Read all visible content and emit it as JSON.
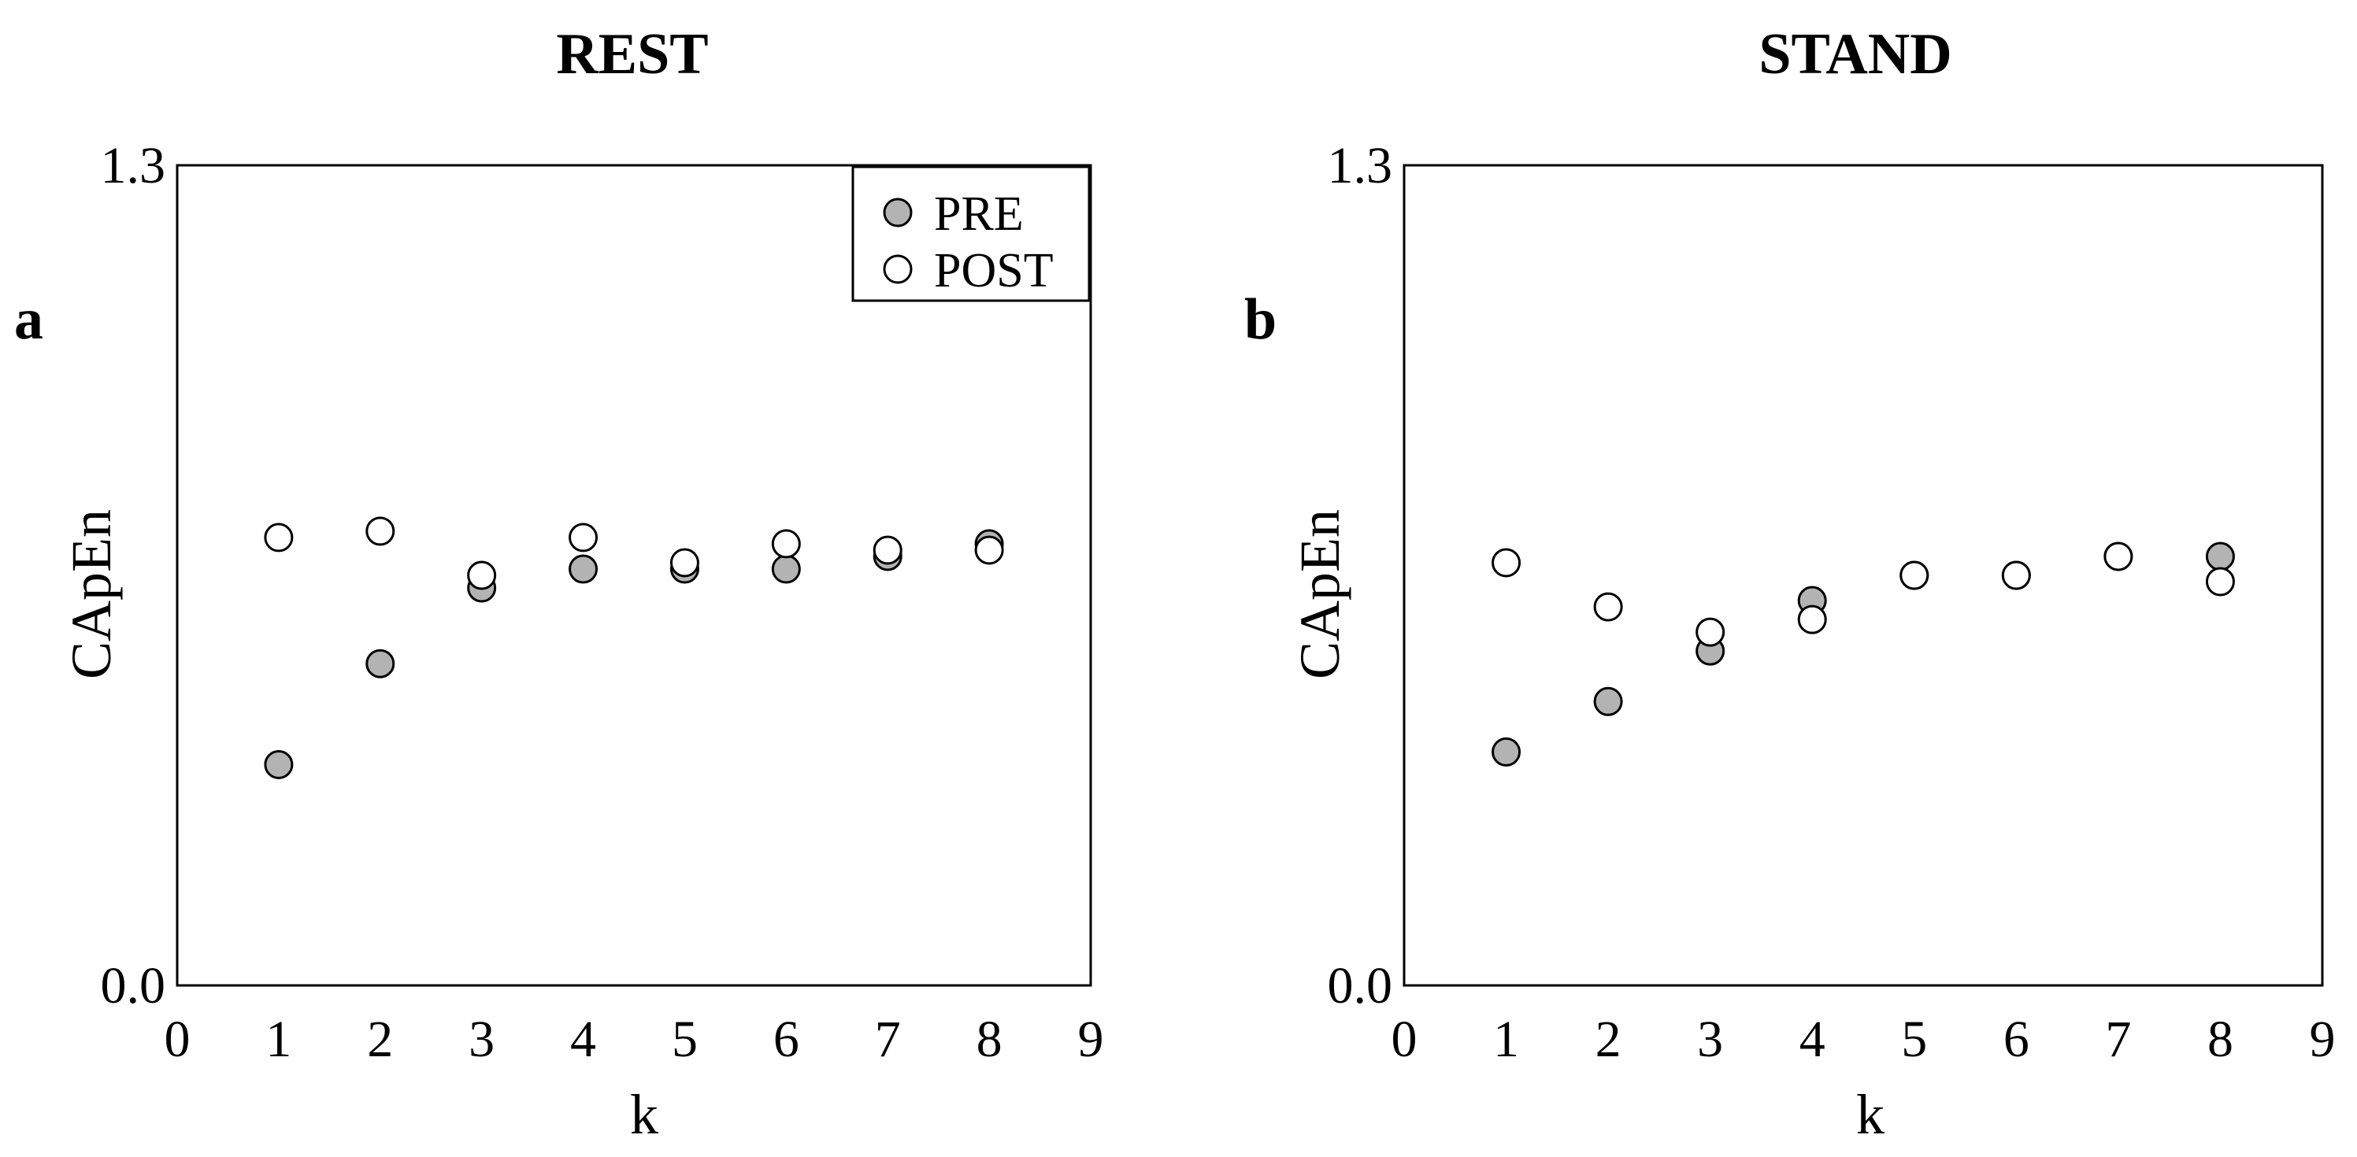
{
  "chart_data": [
    {
      "type": "scatter",
      "panel_label": "a",
      "title": "REST",
      "xlabel": "k",
      "ylabel": "CApEn",
      "xlim": [
        0,
        9
      ],
      "ylim": [
        0.0,
        1.3
      ],
      "x_ticks": [
        "0",
        "1",
        "2",
        "3",
        "4",
        "5",
        "6",
        "7",
        "8",
        "9"
      ],
      "y_ticks": [
        "0.0",
        "1.3"
      ],
      "grid": false,
      "legend": {
        "placement": "top-right"
      },
      "series": [
        {
          "name": "PRE",
          "marker": "filled-circle",
          "color": "#b3b3b3",
          "x": [
            1,
            2,
            3,
            4,
            5,
            6,
            7,
            8
          ],
          "y": [
            0.35,
            0.51,
            0.63,
            0.66,
            0.66,
            0.66,
            0.68,
            0.7
          ]
        },
        {
          "name": "POST",
          "marker": "open-circle",
          "color": "#ffffff",
          "x": [
            1,
            2,
            3,
            4,
            5,
            6,
            7,
            8
          ],
          "y": [
            0.71,
            0.72,
            0.65,
            0.71,
            0.67,
            0.7,
            0.69,
            0.69
          ]
        }
      ]
    },
    {
      "type": "scatter",
      "panel_label": "b",
      "title": "STAND",
      "xlabel": "k",
      "ylabel": "CApEn",
      "xlim": [
        0,
        9
      ],
      "ylim": [
        0.0,
        1.3
      ],
      "x_ticks": [
        "0",
        "1",
        "2",
        "3",
        "4",
        "5",
        "6",
        "7",
        "8",
        "9"
      ],
      "y_ticks": [
        "0.0",
        "1.3"
      ],
      "grid": false,
      "series": [
        {
          "name": "PRE",
          "marker": "filled-circle",
          "color": "#b3b3b3",
          "x": [
            1,
            2,
            3,
            4,
            5,
            6,
            7,
            8
          ],
          "y": [
            0.37,
            0.45,
            0.53,
            0.61,
            0.65,
            0.65,
            0.68,
            0.68
          ]
        },
        {
          "name": "POST",
          "marker": "open-circle",
          "color": "#ffffff",
          "x": [
            1,
            2,
            3,
            4,
            5,
            6,
            7,
            8
          ],
          "y": [
            0.67,
            0.6,
            0.56,
            0.58,
            0.65,
            0.65,
            0.68,
            0.64
          ]
        }
      ]
    }
  ]
}
